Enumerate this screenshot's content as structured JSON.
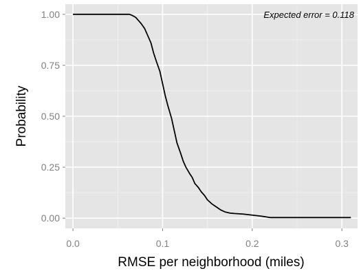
{
  "chart_data": {
    "type": "line",
    "title": "",
    "xlabel": "RMSE per neighborhood (miles)",
    "ylabel": "Probability",
    "annotation": "Expected error = 0.118",
    "xlim": [
      -0.0085,
      0.3175
    ],
    "ylim": [
      -0.05,
      1.05
    ],
    "x_ticks": [
      0.0,
      0.1,
      0.2,
      0.3
    ],
    "x_tick_labels": [
      "0.0",
      "0.1",
      "0.2",
      "0.3"
    ],
    "y_ticks": [
      0.0,
      0.25,
      0.5,
      0.75,
      1.0
    ],
    "y_tick_labels": [
      "0.00",
      "0.25",
      "0.50",
      "0.75",
      "1.00"
    ],
    "grid": true,
    "legend": "none",
    "colors": {
      "panel": "#e5e5e5",
      "grid_major": "#ffffff",
      "grid_minor": "#f2f2f2",
      "line": "#000000"
    },
    "series": [
      {
        "x": [
          0.0,
          0.063,
          0.066,
          0.07,
          0.073,
          0.076,
          0.08,
          0.083,
          0.087,
          0.09,
          0.093,
          0.097,
          0.1,
          0.103,
          0.106,
          0.11,
          0.113,
          0.116,
          0.12,
          0.123,
          0.126,
          0.13,
          0.133,
          0.136,
          0.14,
          0.143,
          0.147,
          0.15,
          0.155,
          0.16,
          0.165,
          0.17,
          0.175,
          0.18,
          0.19,
          0.2,
          0.21,
          0.22,
          0.31
        ],
        "y": [
          1.0,
          1.0,
          0.995,
          0.985,
          0.97,
          0.955,
          0.93,
          0.9,
          0.86,
          0.81,
          0.77,
          0.72,
          0.66,
          0.6,
          0.55,
          0.49,
          0.43,
          0.37,
          0.32,
          0.28,
          0.25,
          0.22,
          0.2,
          0.17,
          0.15,
          0.13,
          0.11,
          0.09,
          0.07,
          0.055,
          0.04,
          0.03,
          0.025,
          0.023,
          0.02,
          0.015,
          0.01,
          0.003,
          0.003
        ]
      }
    ]
  }
}
